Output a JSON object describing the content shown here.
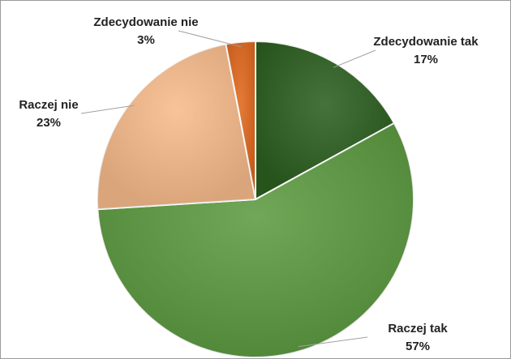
{
  "chart_data": {
    "type": "pie",
    "categories": [
      "Zdecydowanie tak",
      "Raczej tak",
      "Raczej nie",
      "Zdecydowanie nie"
    ],
    "values": [
      17,
      57,
      23,
      3
    ],
    "value_labels": [
      "17%",
      "57%",
      "23%",
      "3%"
    ],
    "colors": [
      "#2b5f1f",
      "#5d9b41",
      "#f8bb8b",
      "#e1681d"
    ]
  }
}
